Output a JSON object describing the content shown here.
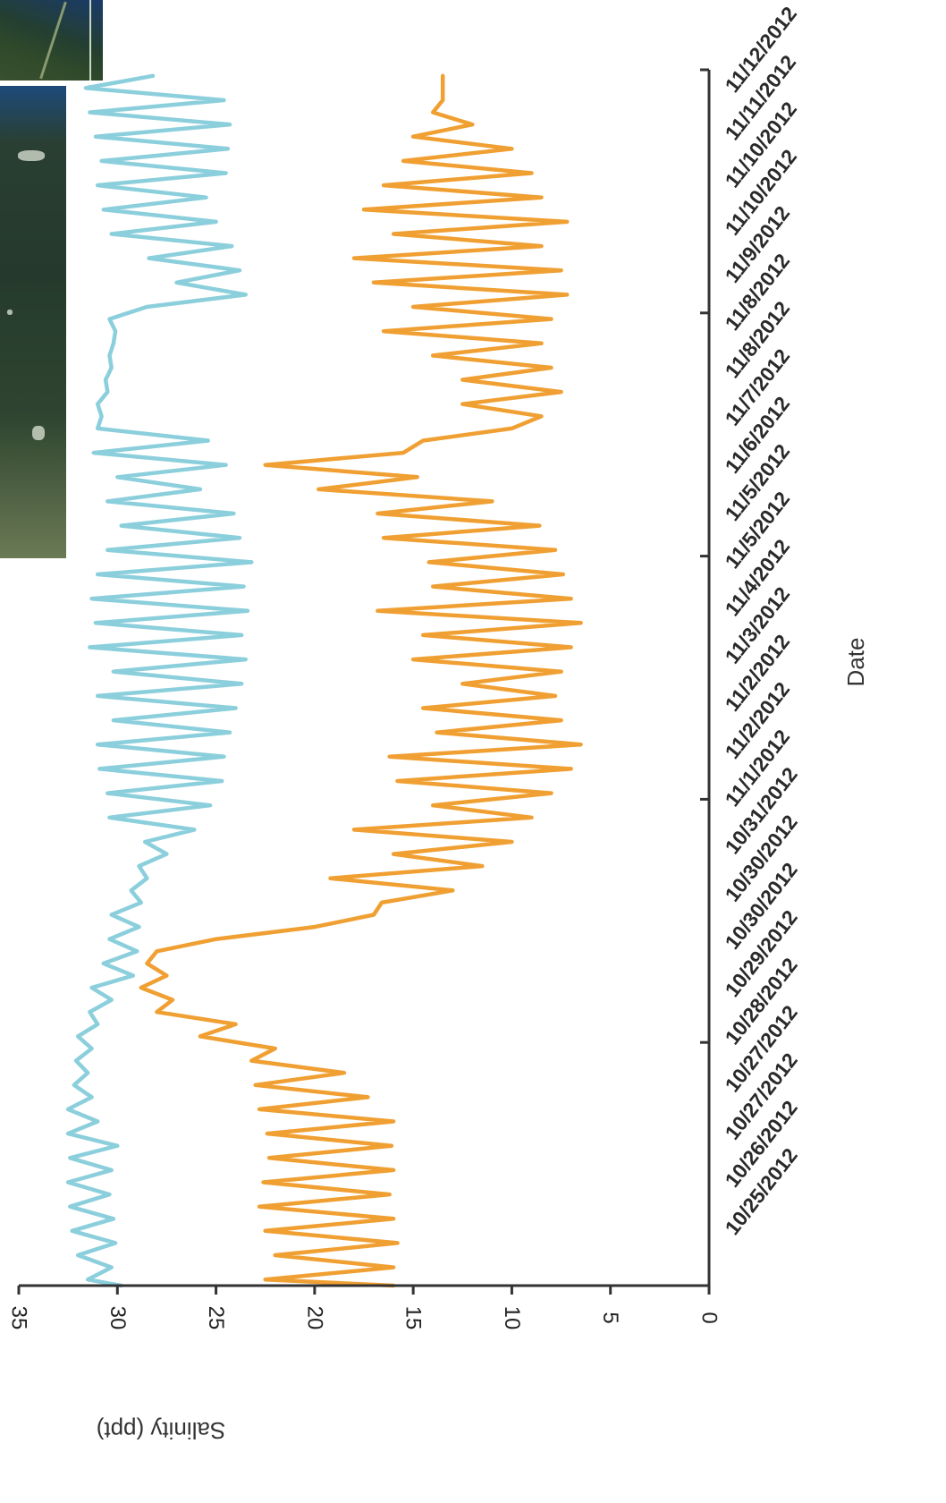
{
  "chart_data": {
    "type": "line",
    "xlabel": "Date",
    "ylabel": "Salinity (ppt)",
    "ylim": [
      0,
      35
    ],
    "yticks": [
      0,
      5,
      10,
      15,
      20,
      25,
      30,
      35
    ],
    "x_tick_labels": [
      "10/25/2012",
      "10/26/2012",
      "10/27/2012",
      "10/27/2012",
      "10/28/2012",
      "10/29/2012",
      "10/30/2012",
      "10/30/2012",
      "10/31/2012",
      "11/1/2012",
      "11/2/2012",
      "11/2/2012",
      "11/3/2012",
      "11/4/2012",
      "11/5/2012",
      "11/5/2012",
      "11/6/2012",
      "11/7/2012",
      "11/8/2012",
      "11/8/2012",
      "11/9/2012",
      "11/10/2012",
      "11/10/2012",
      "11/11/2012",
      "11/12/2012"
    ],
    "grid": false,
    "legend": "none",
    "colors": {
      "series_1": "#8ccfdc",
      "series_2": "#f0a033"
    },
    "series": [
      {
        "values": [
          [
            0,
            29.8
          ],
          [
            0.25,
            31.5
          ],
          [
            0.75,
            30.3
          ],
          [
            1.25,
            32.0
          ],
          [
            1.75,
            30.1
          ],
          [
            2.25,
            32.3
          ],
          [
            2.75,
            30.2
          ],
          [
            3.25,
            32.4
          ],
          [
            3.75,
            30.4
          ],
          [
            4.25,
            32.5
          ],
          [
            4.75,
            30.3
          ],
          [
            5.25,
            32.4
          ],
          [
            5.75,
            30.0
          ],
          [
            6.25,
            32.5
          ],
          [
            6.75,
            31.0
          ],
          [
            7.25,
            32.5
          ],
          [
            7.75,
            31.3
          ],
          [
            8.25,
            32.2
          ],
          [
            8.75,
            31.5
          ],
          [
            9.25,
            32.1
          ],
          [
            9.75,
            31.3
          ],
          [
            10.25,
            32.0
          ],
          [
            10.75,
            31.0
          ],
          [
            11.25,
            31.4
          ],
          [
            11.75,
            30.3
          ],
          [
            12.25,
            31.3
          ],
          [
            12.75,
            29.2
          ],
          [
            13.25,
            30.7
          ],
          [
            13.75,
            29.0
          ],
          [
            14.25,
            30.4
          ],
          [
            14.75,
            28.9
          ],
          [
            15.25,
            30.3
          ],
          [
            15.75,
            28.8
          ],
          [
            16.25,
            29.3
          ],
          [
            16.75,
            28.5
          ],
          [
            17.25,
            28.9
          ],
          [
            17.75,
            27.5
          ],
          [
            18.25,
            28.6
          ],
          [
            18.75,
            26.1
          ],
          [
            19.25,
            30.4
          ],
          [
            19.75,
            25.3
          ],
          [
            20.25,
            30.5
          ],
          [
            20.75,
            24.7
          ],
          [
            21.25,
            30.9
          ],
          [
            21.75,
            24.6
          ],
          [
            22.25,
            31.0
          ],
          [
            22.75,
            24.3
          ],
          [
            23.25,
            30.2
          ],
          [
            23.75,
            24.0
          ],
          [
            24.25,
            31.0
          ],
          [
            24.75,
            23.7
          ],
          [
            25.25,
            30.2
          ],
          [
            25.75,
            23.5
          ],
          [
            26.25,
            31.4
          ],
          [
            26.75,
            23.7
          ],
          [
            27.25,
            31.1
          ],
          [
            27.75,
            23.4
          ],
          [
            28.25,
            31.3
          ],
          [
            28.75,
            23.6
          ],
          [
            29.25,
            31.0
          ],
          [
            29.75,
            23.2
          ],
          [
            30.25,
            30.5
          ],
          [
            30.75,
            23.8
          ],
          [
            31.25,
            29.8
          ],
          [
            31.75,
            24.1
          ],
          [
            32.25,
            30.5
          ],
          [
            32.75,
            25.8
          ],
          [
            33.25,
            30.0
          ],
          [
            33.75,
            24.5
          ],
          [
            34.25,
            31.2
          ],
          [
            34.75,
            25.4
          ],
          [
            35.25,
            31.0
          ],
          [
            35.75,
            30.8
          ],
          [
            36.25,
            31.0
          ],
          [
            36.75,
            30.5
          ],
          [
            37.25,
            30.6
          ],
          [
            37.75,
            30.3
          ],
          [
            38.25,
            30.4
          ],
          [
            38.75,
            30.2
          ],
          [
            39.25,
            30.1
          ],
          [
            39.75,
            30.4
          ],
          [
            40.25,
            28.5
          ],
          [
            40.75,
            23.5
          ],
          [
            41.25,
            27.0
          ],
          [
            41.75,
            23.8
          ],
          [
            42.25,
            28.4
          ],
          [
            42.75,
            24.2
          ],
          [
            43.25,
            30.3
          ],
          [
            43.75,
            25.0
          ],
          [
            44.25,
            30.7
          ],
          [
            44.75,
            25.5
          ],
          [
            45.25,
            31.0
          ],
          [
            45.75,
            24.5
          ],
          [
            46.25,
            30.8
          ],
          [
            46.75,
            24.4
          ],
          [
            47.25,
            31.1
          ],
          [
            47.75,
            24.3
          ],
          [
            48.25,
            31.4
          ],
          [
            48.75,
            24.6
          ],
          [
            49.25,
            31.6
          ],
          [
            49.75,
            28.2
          ]
        ]
      },
      {
        "values": [
          [
            0,
            16.0
          ],
          [
            0.25,
            22.5
          ],
          [
            0.75,
            16.0
          ],
          [
            1.25,
            22.0
          ],
          [
            1.75,
            15.8
          ],
          [
            2.25,
            22.5
          ],
          [
            2.75,
            16.0
          ],
          [
            3.25,
            22.8
          ],
          [
            3.75,
            16.2
          ],
          [
            4.25,
            22.6
          ],
          [
            4.75,
            16.0
          ],
          [
            5.25,
            22.3
          ],
          [
            5.75,
            16.1
          ],
          [
            6.25,
            22.4
          ],
          [
            6.75,
            16.0
          ],
          [
            7.25,
            22.8
          ],
          [
            7.75,
            17.3
          ],
          [
            8.25,
            23.0
          ],
          [
            8.75,
            18.5
          ],
          [
            9.25,
            23.2
          ],
          [
            9.75,
            22.0
          ],
          [
            10.25,
            25.8
          ],
          [
            10.75,
            24.0
          ],
          [
            11.25,
            28.0
          ],
          [
            11.75,
            27.2
          ],
          [
            12.25,
            28.8
          ],
          [
            12.75,
            27.5
          ],
          [
            13.25,
            28.5
          ],
          [
            13.75,
            28.0
          ],
          [
            14.25,
            25.0
          ],
          [
            14.75,
            20.0
          ],
          [
            15.25,
            17.0
          ],
          [
            15.75,
            16.6
          ],
          [
            16.25,
            13.0
          ],
          [
            16.75,
            19.2
          ],
          [
            17.25,
            11.5
          ],
          [
            17.75,
            16.0
          ],
          [
            18.25,
            10.0
          ],
          [
            18.75,
            18.0
          ],
          [
            19.25,
            9.0
          ],
          [
            19.75,
            14.0
          ],
          [
            20.25,
            8.0
          ],
          [
            20.75,
            15.8
          ],
          [
            21.25,
            7.0
          ],
          [
            21.75,
            16.2
          ],
          [
            22.25,
            6.5
          ],
          [
            22.75,
            13.8
          ],
          [
            23.25,
            7.5
          ],
          [
            23.75,
            14.5
          ],
          [
            24.25,
            7.8
          ],
          [
            24.75,
            12.5
          ],
          [
            25.25,
            7.5
          ],
          [
            25.75,
            15.0
          ],
          [
            26.25,
            7.0
          ],
          [
            26.75,
            14.5
          ],
          [
            27.25,
            6.5
          ],
          [
            27.75,
            16.8
          ],
          [
            28.25,
            7.0
          ],
          [
            28.75,
            14.0
          ],
          [
            29.25,
            7.4
          ],
          [
            29.75,
            14.2
          ],
          [
            30.25,
            7.8
          ],
          [
            30.75,
            16.5
          ],
          [
            31.25,
            8.6
          ],
          [
            31.75,
            16.8
          ],
          [
            32.25,
            11.0
          ],
          [
            32.75,
            19.8
          ],
          [
            33.25,
            14.8
          ],
          [
            33.75,
            22.5
          ],
          [
            34.25,
            15.5
          ],
          [
            34.75,
            14.5
          ],
          [
            35.25,
            10.0
          ],
          [
            35.75,
            8.5
          ],
          [
            36.25,
            12.5
          ],
          [
            36.75,
            7.5
          ],
          [
            37.25,
            12.5
          ],
          [
            37.75,
            8.0
          ],
          [
            38.25,
            14.0
          ],
          [
            38.75,
            8.5
          ],
          [
            39.25,
            16.5
          ],
          [
            39.75,
            8.0
          ],
          [
            40.25,
            15.0
          ],
          [
            40.75,
            7.2
          ],
          [
            41.25,
            17.0
          ],
          [
            41.75,
            7.5
          ],
          [
            42.25,
            18.0
          ],
          [
            42.75,
            8.5
          ],
          [
            43.25,
            16.0
          ],
          [
            43.75,
            7.2
          ],
          [
            44.25,
            17.5
          ],
          [
            44.75,
            8.5
          ],
          [
            45.25,
            16.5
          ],
          [
            45.75,
            9.0
          ],
          [
            46.25,
            15.5
          ],
          [
            46.75,
            10.0
          ],
          [
            47.25,
            15.0
          ],
          [
            47.75,
            12.0
          ],
          [
            48.25,
            14.0
          ],
          [
            48.75,
            13.5
          ],
          [
            49.25,
            13.5
          ],
          [
            49.75,
            13.5
          ]
        ]
      }
    ]
  },
  "images": {
    "top_thumbnail_icon": "satellite-photo-icon",
    "left_thumbnail_icon": "satellite-photo-icon"
  }
}
